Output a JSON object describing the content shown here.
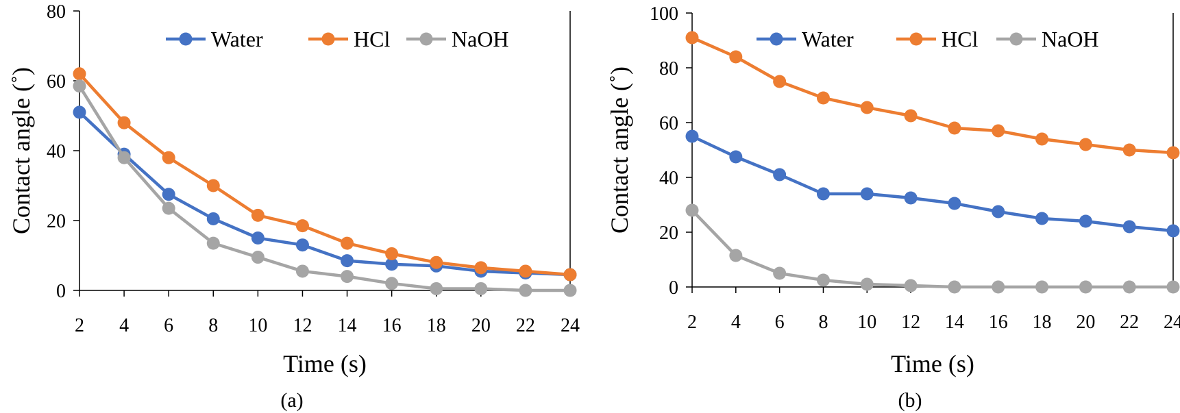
{
  "chart_data": [
    {
      "type": "line",
      "panel_label": "(a)",
      "xlabel": "Time (s)",
      "ylabel": "Contact angle (˚)",
      "x": [
        2,
        4,
        6,
        8,
        10,
        12,
        14,
        16,
        18,
        20,
        22,
        24
      ],
      "x_ticks": [
        "2",
        "4",
        "6",
        "8",
        "10",
        "12",
        "14",
        "16",
        "18",
        "20",
        "22",
        "24"
      ],
      "ylim": [
        0,
        80
      ],
      "y_ticks": [
        "0",
        "20",
        "40",
        "60",
        "80"
      ],
      "grid": false,
      "legend_position": "top",
      "series": [
        {
          "name": "Water",
          "color": "#4472C4",
          "values": [
            51,
            39,
            27.5,
            20.5,
            15,
            13,
            8.5,
            7.5,
            7,
            5.5,
            5,
            4.5
          ]
        },
        {
          "name": "HCl",
          "color": "#ED7D31",
          "values": [
            62,
            48,
            38,
            30,
            21.5,
            18.5,
            13.5,
            10.5,
            8,
            6.5,
            5.5,
            4.5
          ]
        },
        {
          "name": "NaOH",
          "color": "#A5A5A5",
          "values": [
            58.5,
            38,
            23.5,
            13.5,
            9.5,
            5.5,
            4,
            2,
            0.5,
            0.5,
            0,
            0
          ]
        }
      ]
    },
    {
      "type": "line",
      "panel_label": "(b)",
      "xlabel": "Time (s)",
      "ylabel": "Contact angle (˚)",
      "x": [
        2,
        4,
        6,
        8,
        10,
        12,
        14,
        16,
        18,
        20,
        22,
        24
      ],
      "x_ticks": [
        "2",
        "4",
        "6",
        "8",
        "10",
        "12",
        "14",
        "16",
        "18",
        "20",
        "22",
        "24"
      ],
      "ylim": [
        0,
        100
      ],
      "y_ticks": [
        "0",
        "20",
        "40",
        "60",
        "80",
        "100"
      ],
      "grid": false,
      "legend_position": "top",
      "series": [
        {
          "name": "Water",
          "color": "#4472C4",
          "values": [
            55,
            47.5,
            41,
            34,
            34,
            32.5,
            30.5,
            27.5,
            25,
            24,
            22,
            20.5
          ]
        },
        {
          "name": "HCl",
          "color": "#ED7D31",
          "values": [
            91,
            84,
            75,
            69,
            65.5,
            62.5,
            58,
            57,
            54,
            52,
            50,
            49
          ]
        },
        {
          "name": "NaOH",
          "color": "#A5A5A5",
          "values": [
            28,
            11.5,
            5,
            2.5,
            1,
            0.5,
            0,
            0,
            0,
            0,
            0,
            0
          ]
        }
      ]
    }
  ]
}
